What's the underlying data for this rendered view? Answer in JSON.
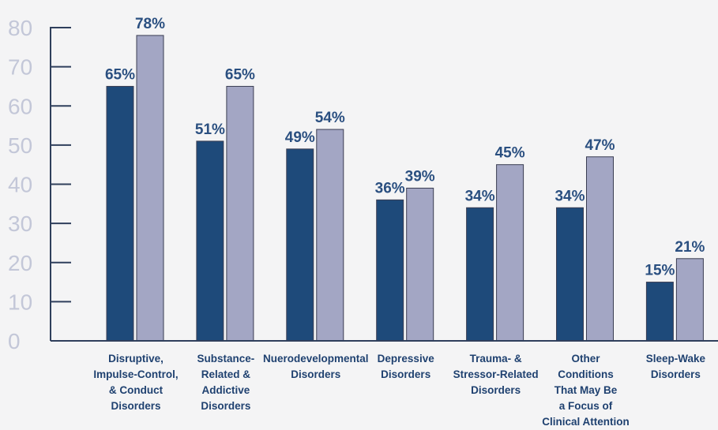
{
  "chart_data": {
    "type": "bar",
    "ylim": [
      0,
      80
    ],
    "yticks": [
      0,
      10,
      20,
      30,
      40,
      50,
      60,
      70,
      80
    ],
    "grid": false,
    "legend": "none",
    "categories": [
      [
        "Disruptive,",
        "Impulse-Control,",
        "& Conduct",
        "Disorders"
      ],
      [
        "Substance-",
        "Related &",
        "Addictive",
        "Disorders"
      ],
      [
        "Nuerodevelopmental",
        "Disorders"
      ],
      [
        "Depressive",
        "Disorders"
      ],
      [
        "Trauma- &",
        "Stressor-Related",
        "Disorders"
      ],
      [
        "Other",
        "Conditions",
        "That May Be",
        "a Focus of",
        "Clinical Attention"
      ],
      [
        "Sleep-Wake",
        "Disorders"
      ]
    ],
    "series": [
      {
        "values": [
          65,
          51,
          49,
          36,
          34,
          34,
          15
        ],
        "labels": [
          "65%",
          "51%",
          "49%",
          "36%",
          "34%",
          "34%",
          "15%"
        ],
        "color": "#1e4a7a"
      },
      {
        "values": [
          78,
          65,
          54,
          39,
          45,
          47,
          21
        ],
        "labels": [
          "78%",
          "65%",
          "54%",
          "39%",
          "45%",
          "47%",
          "21%"
        ],
        "color": "#a3a6c4"
      }
    ],
    "colors": {
      "axis": "#2f3f5c",
      "tick_text": "#c3c7d8",
      "data_label": "#2a4f80",
      "category_text": "#1f4170"
    }
  }
}
